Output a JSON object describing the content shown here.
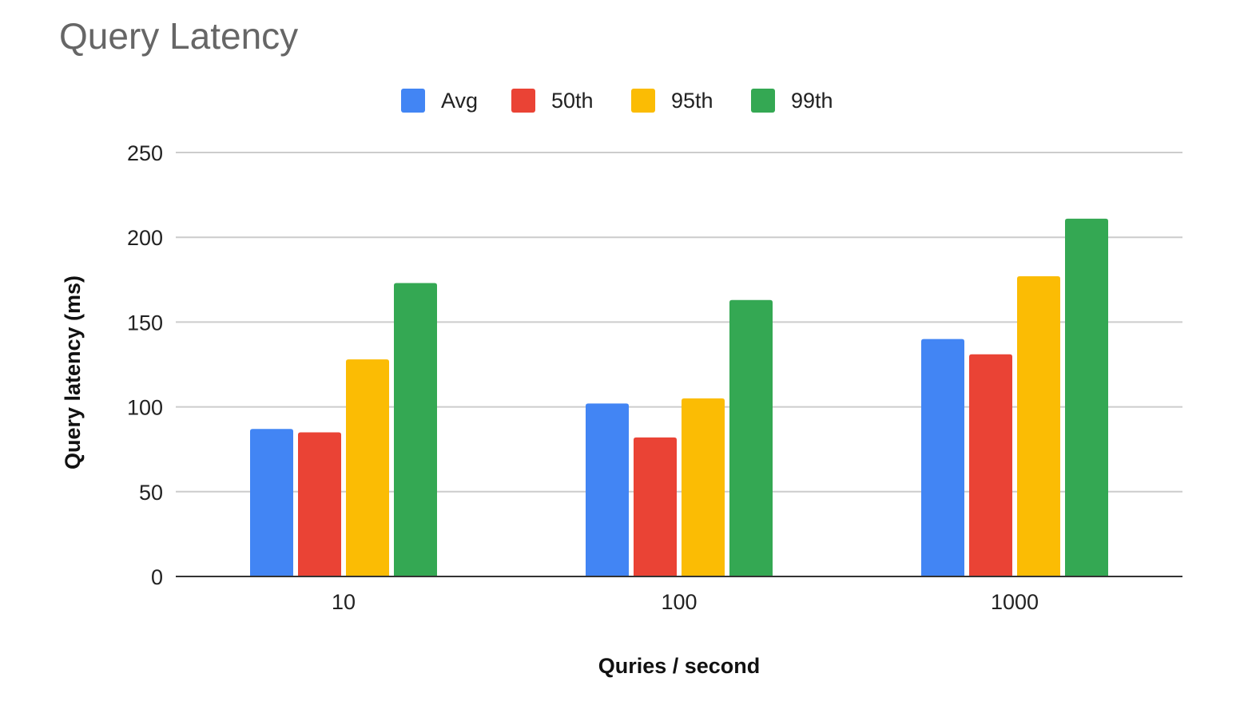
{
  "chart_data": {
    "type": "bar",
    "title": "Query Latency",
    "xlabel": "Quries / second",
    "ylabel": "Query latency (ms)",
    "categories": [
      "10",
      "100",
      "1000"
    ],
    "series": [
      {
        "name": "Avg",
        "color": "#4285f4",
        "values": [
          87,
          102,
          140
        ]
      },
      {
        "name": "50th",
        "color": "#ea4335",
        "values": [
          85,
          82,
          131
        ]
      },
      {
        "name": "95th",
        "color": "#fbbc04",
        "values": [
          128,
          105,
          177
        ]
      },
      {
        "name": "99th",
        "color": "#34a853",
        "values": [
          173,
          163,
          211
        ]
      }
    ],
    "ylim": [
      0,
      250
    ],
    "yticks": [
      "0",
      "50",
      "100",
      "150",
      "200",
      "250"
    ],
    "grid": true,
    "legend_position": "top-center"
  }
}
